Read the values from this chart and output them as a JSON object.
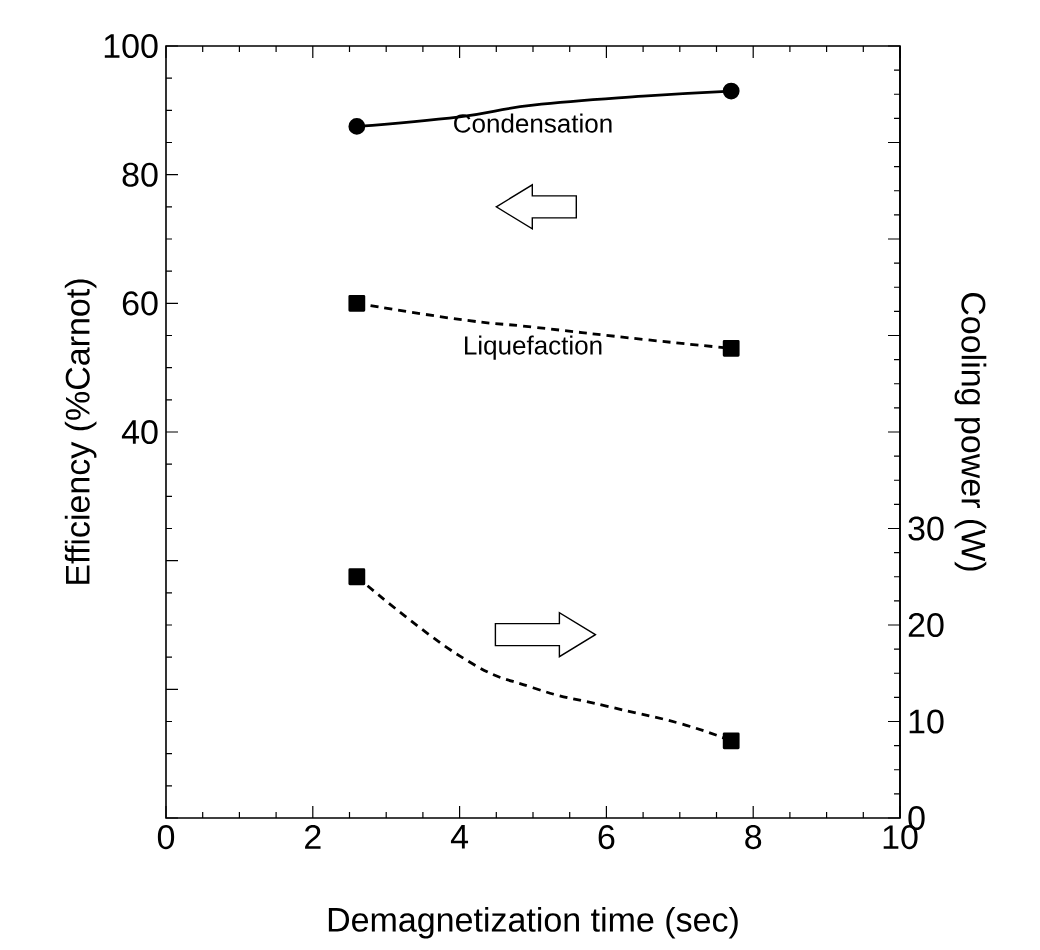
{
  "chart_data": {
    "type": "scatter",
    "xlabel": "Demagnetization time (sec)",
    "ylabel": "Efficiency (%Carnot)",
    "y2label": "Cooling power (W)",
    "xlim": [
      0,
      10
    ],
    "xticks": [
      0,
      2,
      4,
      6,
      8,
      10
    ],
    "ylim": [
      -20,
      100
    ],
    "yticks": [
      {
        "value": -20,
        "label": null
      },
      {
        "value": 0,
        "label": null
      },
      {
        "value": 20,
        "label": null
      },
      40,
      60,
      80,
      100
    ],
    "y2lim": [
      0,
      80
    ],
    "y2ticks": [
      0,
      10,
      20,
      30,
      {
        "value": 40,
        "label": null
      },
      {
        "value": 50,
        "label": null
      },
      {
        "value": 60,
        "label": null
      },
      {
        "value": 70,
        "label": null
      },
      {
        "value": 80,
        "label": null
      }
    ],
    "legend": false,
    "grid": false,
    "series": [
      {
        "marker": "circle",
        "color": "#000000",
        "x": [
          2.6,
          7.7
        ],
        "values": [
          87.5,
          93
        ]
      },
      {
        "name": "Condensation",
        "type": "line",
        "line_style": "solid",
        "marker": "none",
        "color": "#000000",
        "x": [
          2.6,
          4,
          5,
          6.5,
          7.7
        ],
        "values": [
          87.5,
          89,
          90.8,
          92.2,
          93
        ]
      },
      {
        "marker": "square",
        "color": "#000000",
        "x": [
          2.6,
          7.7
        ],
        "values": [
          60,
          53
        ]
      },
      {
        "name": "Liquefaction",
        "type": "line",
        "line_style": "dashed",
        "marker": "none",
        "color": "#000000",
        "x": [
          2.6,
          4,
          5,
          6.5,
          7.7
        ],
        "values": [
          60,
          57.5,
          56.3,
          54.4,
          53
        ]
      },
      {
        "axis": "y2",
        "marker": "square",
        "color": "#000000",
        "x": [
          2.6,
          7.7
        ],
        "values": [
          25,
          8
        ]
      },
      {
        "type": "line",
        "axis": "y2",
        "line_style": "dashed",
        "marker": "none",
        "color": "#000000",
        "x": [
          2.6,
          4,
          5,
          6,
          7,
          7.7
        ],
        "values": [
          25,
          16.8,
          13.5,
          11.6,
          9.8,
          8
        ]
      }
    ]
  }
}
